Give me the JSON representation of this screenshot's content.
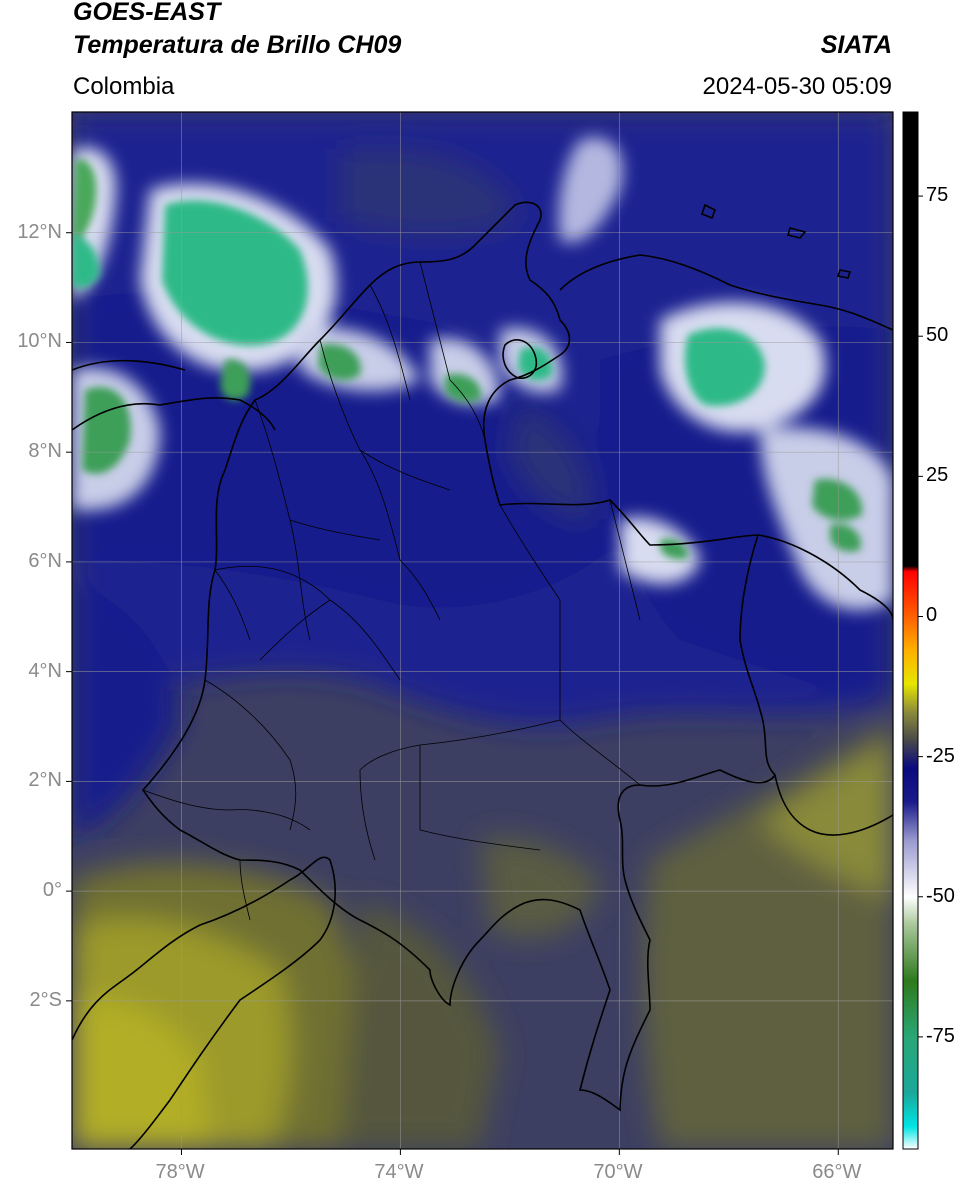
{
  "header": {
    "satellite": "GOES-EAST",
    "product": "Temperatura de Brillo CH09",
    "region": "Colombia",
    "agency": "SIATA",
    "datetime": "2024-05-30 05:09"
  },
  "map": {
    "lon_range": [
      -80,
      -65
    ],
    "lat_range": [
      -4.7,
      14.2
    ],
    "lat_ticks": [
      {
        "value": 12,
        "label": "12°N"
      },
      {
        "value": 10,
        "label": "10°N"
      },
      {
        "value": 8,
        "label": "8°N"
      },
      {
        "value": 6,
        "label": "6°N"
      },
      {
        "value": 4,
        "label": "4°N"
      },
      {
        "value": 2,
        "label": "2°N"
      },
      {
        "value": 0,
        "label": "0°"
      },
      {
        "value": -2,
        "label": "2°S"
      }
    ],
    "lon_ticks": [
      {
        "value": -78,
        "label": "78°W"
      },
      {
        "value": -74,
        "label": "74°W"
      },
      {
        "value": -70,
        "label": "70°W"
      },
      {
        "value": -66,
        "label": "66°W"
      }
    ],
    "grid": true
  },
  "colorbar": {
    "range": [
      -95,
      90
    ],
    "ticks": [
      {
        "value": 75,
        "label": "75"
      },
      {
        "value": 50,
        "label": "50"
      },
      {
        "value": 25,
        "label": "25"
      },
      {
        "value": 0,
        "label": "0"
      },
      {
        "value": -25,
        "label": "-25"
      },
      {
        "value": -50,
        "label": "-50"
      },
      {
        "value": -75,
        "label": "-75"
      }
    ],
    "stops": [
      {
        "value": -95,
        "color": "#ffffff"
      },
      {
        "value": -91,
        "color": "#00e5e5"
      },
      {
        "value": -85,
        "color": "#1aa89a"
      },
      {
        "value": -75,
        "color": "#2aa776"
      },
      {
        "value": -65,
        "color": "#2e7a1c"
      },
      {
        "value": -55,
        "color": "#a9c79a"
      },
      {
        "value": -50,
        "color": "#ffffff"
      },
      {
        "value": -40,
        "color": "#9a9ad0"
      },
      {
        "value": -33,
        "color": "#1a1a8a"
      },
      {
        "value": -27,
        "color": "#0a0a80"
      },
      {
        "value": -22,
        "color": "#4a4a4a"
      },
      {
        "value": -17,
        "color": "#8c8c3a"
      },
      {
        "value": -12,
        "color": "#e6e600"
      },
      {
        "value": -6,
        "color": "#ffb000"
      },
      {
        "value": 0,
        "color": "#ff6000"
      },
      {
        "value": 8,
        "color": "#ff0000"
      },
      {
        "value": 9,
        "color": "#000000"
      },
      {
        "value": 90,
        "color": "#000000"
      }
    ]
  }
}
